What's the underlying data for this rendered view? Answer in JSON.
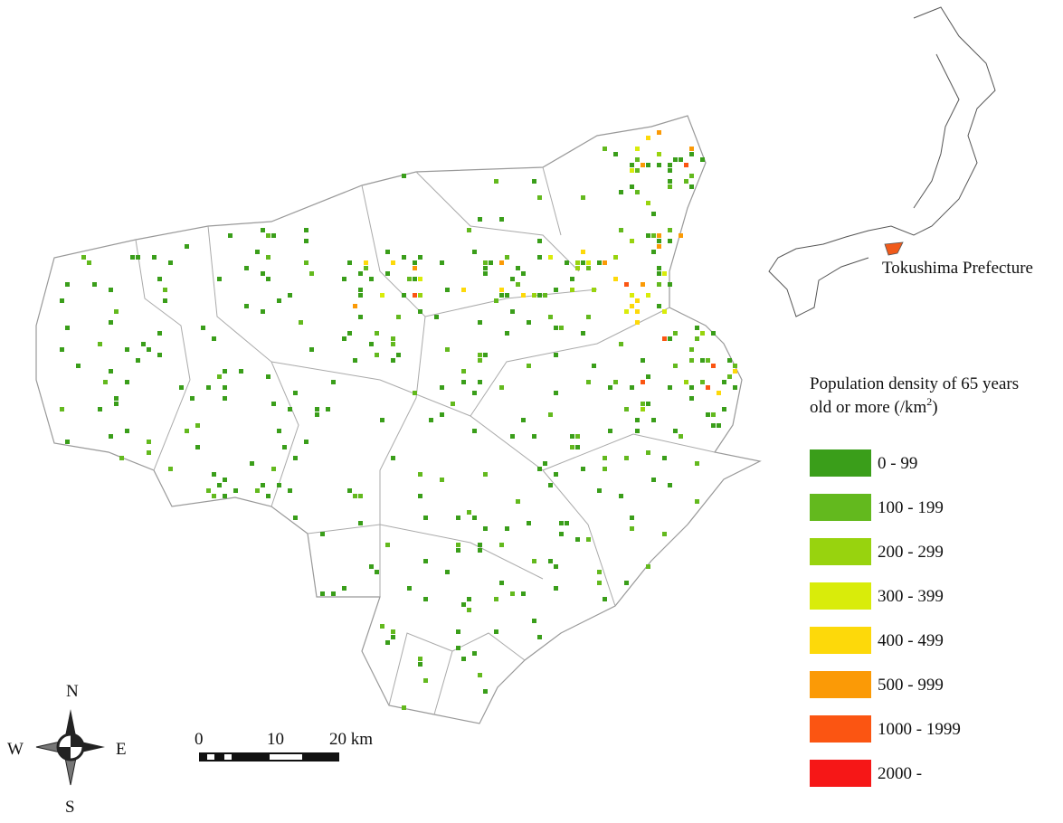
{
  "inset": {
    "label": "Tokushima Prefecture"
  },
  "legend": {
    "title_line1": "Population density of 65 years",
    "title_line2": "old or more (/km",
    "title_sup": "2",
    "title_end": ")",
    "items": [
      {
        "label": "0 - 99",
        "color": "#3a9e1a"
      },
      {
        "label": "100 - 199",
        "color": "#63b91e"
      },
      {
        "label": "200 - 299",
        "color": "#98d30e"
      },
      {
        "label": "300 - 399",
        "color": "#d9ec0a"
      },
      {
        "label": "400 - 499",
        "color": "#fdd90a"
      },
      {
        "label": "500 - 999",
        "color": "#fb9a06"
      },
      {
        "label": "1000 - 1999",
        "color": "#fb5512"
      },
      {
        "label": "2000 -",
        "color": "#f61717"
      }
    ]
  },
  "compass": {
    "n": "N",
    "e": "E",
    "s": "S",
    "w": "W"
  },
  "scale_bar": {
    "labels": [
      "0",
      "10",
      "20 km"
    ]
  }
}
